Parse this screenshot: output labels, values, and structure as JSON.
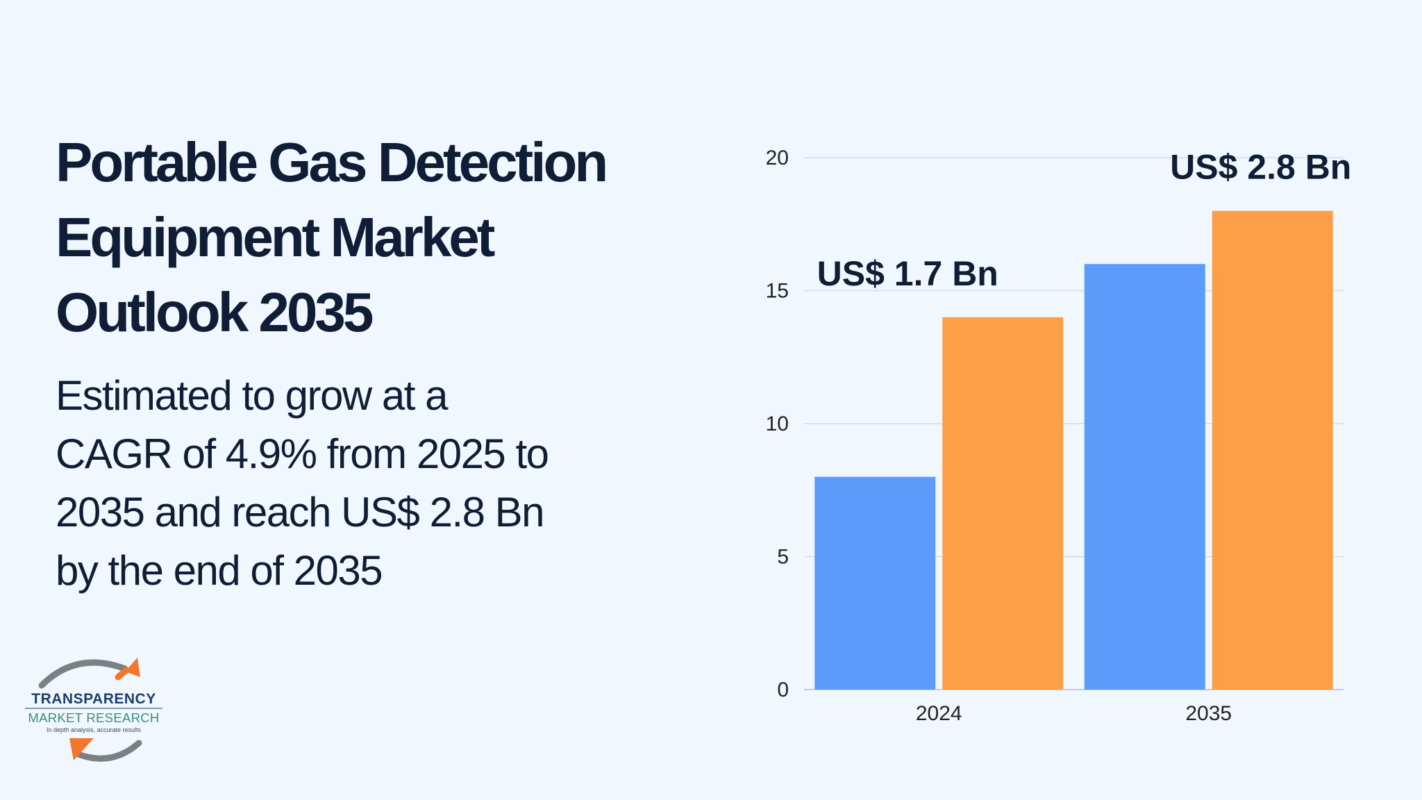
{
  "title": "Portable Gas Detection Equipment Market Outlook 2035",
  "subtitle": "Estimated to grow at a CAGR of 4.9% from 2025 to 2035 and reach US$ 2.8 Bn by the end of 2035",
  "logo": {
    "brand": "TRANSPARENCY",
    "sub": "MARKET RESEARCH",
    "tagline": "In depth analysis, accurate results"
  },
  "colors": {
    "background": "#f1f7fe",
    "text": "#0f1d36",
    "series_blue": "#5b9bfc",
    "series_orange": "#fe9e47",
    "grid": "#d6dbe2"
  },
  "chart_data": {
    "type": "bar",
    "categories": [
      "2024",
      "2035"
    ],
    "series": [
      {
        "values": [
          8,
          16
        ],
        "color": "#5b9bfc"
      },
      {
        "values": [
          14,
          18
        ],
        "color": "#fe9e47"
      }
    ],
    "data_labels": [
      "US$ 1.7 Bn",
      "US$ 2.8 Bn"
    ],
    "ylim": [
      0,
      20
    ],
    "yticks": [
      "0",
      "5",
      "10",
      "15",
      "20"
    ],
    "grid": true,
    "legend": "none"
  }
}
